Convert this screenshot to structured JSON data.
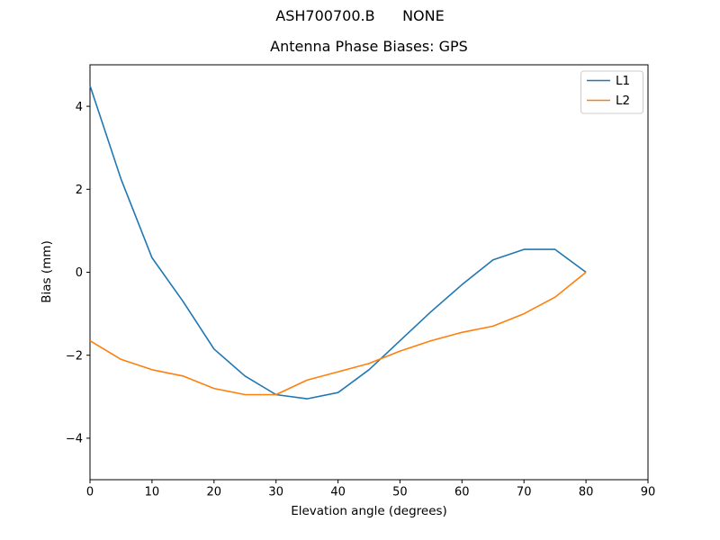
{
  "figure": {
    "suptitle": "ASH700700.B      NONE",
    "background": "#ffffff"
  },
  "chart_data": {
    "type": "line",
    "title": "Antenna Phase Biases: GPS",
    "xlabel": "Elevation angle (degrees)",
    "ylabel": "Bias (mm)",
    "xlim": [
      0,
      90
    ],
    "ylim": [
      -5,
      5
    ],
    "xticks": [
      0,
      10,
      20,
      30,
      40,
      50,
      60,
      70,
      80,
      90
    ],
    "yticks": [
      -4,
      -2,
      0,
      2,
      4
    ],
    "grid": false,
    "legend": {
      "position": "upper right",
      "entries": [
        "L1",
        "L2"
      ]
    },
    "x": [
      0,
      5,
      10,
      15,
      20,
      25,
      30,
      35,
      40,
      45,
      50,
      55,
      60,
      65,
      70,
      75,
      80
    ],
    "series": [
      {
        "name": "L1",
        "color": "#1f77b4",
        "values": [
          4.5,
          2.25,
          0.35,
          -0.7,
          -1.85,
          -2.5,
          -2.95,
          -3.05,
          -2.9,
          -2.35,
          -1.65,
          -0.95,
          -0.3,
          0.3,
          0.55,
          0.55,
          0.0
        ]
      },
      {
        "name": "L2",
        "color": "#ff7f0e",
        "values": [
          -1.65,
          -2.1,
          -2.35,
          -2.5,
          -2.8,
          -2.95,
          -2.95,
          -2.6,
          -2.4,
          -2.2,
          -1.9,
          -1.65,
          -1.45,
          -1.3,
          -1.0,
          -0.6,
          0.0
        ]
      }
    ],
    "axis_color": "#000000",
    "legend_border_color": "#cccccc"
  }
}
